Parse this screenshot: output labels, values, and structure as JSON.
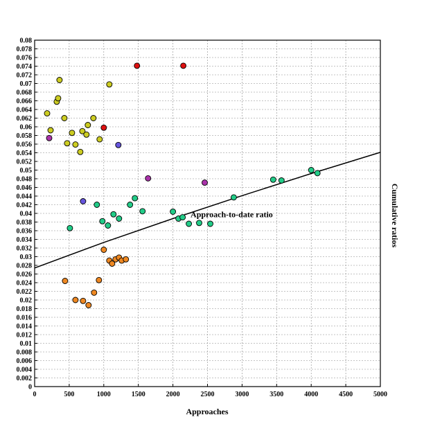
{
  "chart_data": {
    "type": "scatter",
    "title": "",
    "xlabel": "Approaches",
    "ylabel": "Cumulative ratios",
    "xlim": [
      0,
      5000
    ],
    "ylim": [
      0,
      0.08
    ],
    "grid": true,
    "x_ticks": [
      "0",
      "500",
      "1000",
      "1500",
      "2000",
      "2500",
      "3000",
      "3500",
      "4000",
      "4500",
      "5000"
    ],
    "y_ticks": [
      "0",
      "0.002",
      "0.004",
      "0.006",
      "0.008",
      "0.01",
      "0.012",
      "0.014",
      "0.016",
      "0.018",
      "0.02",
      "0.022",
      "0.024",
      "0.026",
      "0.028",
      "0.03",
      "0.032",
      "0.034",
      "0.036",
      "0.038",
      "0.04",
      "0.042",
      "0.044",
      "0.046",
      "0.048",
      "0.05",
      "0.052",
      "0.054",
      "0.056",
      "0.058",
      "0.06",
      "0.062",
      "0.064",
      "0.066",
      "0.068",
      "0.07",
      "0.072",
      "0.074",
      "0.076",
      "0.078",
      "0.08"
    ],
    "trend_line": {
      "label": "Approach-to-date ratio",
      "points": [
        [
          0,
          0.0274
        ],
        [
          1000,
          0.0333
        ],
        [
          2000,
          0.0388
        ],
        [
          3000,
          0.0441
        ],
        [
          4000,
          0.0492
        ],
        [
          5000,
          0.0541
        ]
      ]
    },
    "series": [
      {
        "color": "#cccc22",
        "points": [
          [
            180,
            0.0631
          ],
          [
            230,
            0.0592
          ],
          [
            320,
            0.0658
          ],
          [
            340,
            0.0666
          ],
          [
            360,
            0.0708
          ],
          [
            430,
            0.062
          ],
          [
            470,
            0.0562
          ],
          [
            540,
            0.0586
          ],
          [
            590,
            0.0559
          ],
          [
            660,
            0.0542
          ],
          [
            690,
            0.059
          ],
          [
            750,
            0.0582
          ],
          [
            770,
            0.0604
          ],
          [
            850,
            0.062
          ],
          [
            940,
            0.0571
          ],
          [
            1080,
            0.0698
          ]
        ]
      },
      {
        "color": "#dd1111",
        "points": [
          [
            1000,
            0.0598
          ],
          [
            1480,
            0.0741
          ],
          [
            2150,
            0.0741
          ]
        ]
      },
      {
        "color": "#6655dd",
        "points": [
          [
            700,
            0.0428
          ],
          [
            1210,
            0.0558
          ]
        ]
      },
      {
        "color": "#aa33aa",
        "points": [
          [
            210,
            0.0574
          ],
          [
            1640,
            0.0481
          ],
          [
            2460,
            0.0471
          ]
        ]
      },
      {
        "color": "#22cc88",
        "points": [
          [
            510,
            0.0366
          ],
          [
            900,
            0.042
          ],
          [
            980,
            0.0382
          ],
          [
            1060,
            0.0372
          ],
          [
            1140,
            0.0398
          ],
          [
            1220,
            0.0388
          ],
          [
            1380,
            0.042
          ],
          [
            1450,
            0.0435
          ],
          [
            1560,
            0.0405
          ],
          [
            2000,
            0.0404
          ],
          [
            2080,
            0.0388
          ],
          [
            2140,
            0.0391
          ],
          [
            2230,
            0.0376
          ],
          [
            2380,
            0.0378
          ],
          [
            2540,
            0.0376
          ],
          [
            2880,
            0.0437
          ],
          [
            3450,
            0.0478
          ],
          [
            3570,
            0.0476
          ],
          [
            4000,
            0.05
          ],
          [
            4090,
            0.0493
          ]
        ]
      },
      {
        "color": "#ee8822",
        "points": [
          [
            440,
            0.0244
          ],
          [
            590,
            0.02
          ],
          [
            700,
            0.0198
          ],
          [
            780,
            0.0188
          ],
          [
            860,
            0.0217
          ],
          [
            930,
            0.0246
          ],
          [
            1000,
            0.0316
          ],
          [
            1080,
            0.0291
          ],
          [
            1120,
            0.0284
          ],
          [
            1170,
            0.0294
          ],
          [
            1220,
            0.0298
          ],
          [
            1260,
            0.0291
          ],
          [
            1320,
            0.0294
          ]
        ]
      }
    ]
  }
}
